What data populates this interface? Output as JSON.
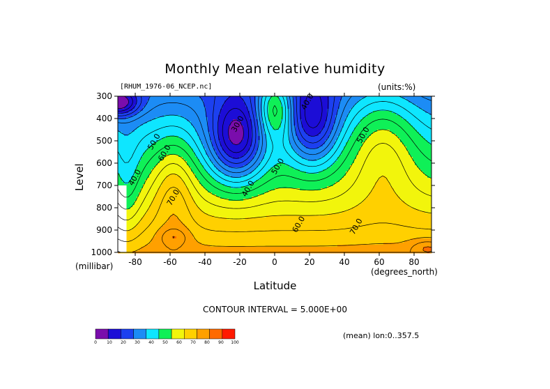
{
  "title": "Monthly Mean relative humidity",
  "file_label": "[RHUM_1976-06_NCEP.nc]",
  "units_label": "(units:%)",
  "ylabel": "Level",
  "yunits": "(millibar)",
  "xlabel": "Latitude",
  "xunits": "(degrees_north)",
  "contour_interval": "CONTOUR INTERVAL = 5.000E+00",
  "mean_lon": "(mean) lon:0..357.5",
  "chart_data": {
    "type": "heatmap",
    "title": "Monthly Mean relative humidity",
    "xlabel": "Latitude",
    "ylabel": "Level",
    "x_ticks": [
      -80,
      -60,
      -40,
      -20,
      0,
      20,
      40,
      60,
      80
    ],
    "y_ticks": [
      300,
      400,
      500,
      600,
      700,
      800,
      900,
      1000
    ],
    "xlim": [
      -90,
      90
    ],
    "ylim": [
      1000,
      300
    ],
    "contour_labels": [
      {
        "lat": -20,
        "lev": 430,
        "text": "30.0"
      },
      {
        "lat": 20,
        "lev": 330,
        "text": "40.0"
      },
      {
        "lat": 52,
        "lev": 480,
        "text": "50.0"
      },
      {
        "lat": -68,
        "lev": 510,
        "text": "50.0"
      },
      {
        "lat": -62,
        "lev": 560,
        "text": "60.0"
      },
      {
        "lat": -79,
        "lev": 670,
        "text": "40.0"
      },
      {
        "lat": -57,
        "lev": 760,
        "text": "70.0"
      },
      {
        "lat": -14,
        "lev": 720,
        "text": "40.0"
      },
      {
        "lat": 3,
        "lev": 620,
        "text": "50.0"
      },
      {
        "lat": 15,
        "lev": 880,
        "text": "60.0"
      },
      {
        "lat": 48,
        "lev": 890,
        "text": "70.0"
      }
    ],
    "colorbar": {
      "levels": [
        0,
        10,
        20,
        30,
        40,
        50,
        60,
        70,
        80,
        90,
        100
      ],
      "colors": [
        "#7a0dac",
        "#1c0dd6",
        "#1c40f0",
        "#1c8cf5",
        "#0ee6ff",
        "#0ff057",
        "#f2f50c",
        "#ffd000",
        "#ffa000",
        "#ff6a00",
        "#ff1a00"
      ]
    }
  }
}
